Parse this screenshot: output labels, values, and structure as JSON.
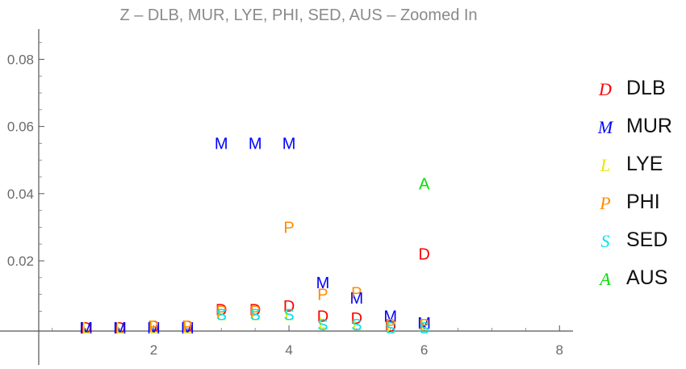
{
  "chart_data": {
    "type": "scatter",
    "title": "Z – DLB, MUR, LYE, PHI, SED, AUS – Zoomed In",
    "xlabel": "",
    "ylabel": "",
    "xlim": [
      0.3,
      8.2
    ],
    "ylim": [
      -0.011,
      0.089
    ],
    "x_ticks": [
      2,
      4,
      6,
      8
    ],
    "x_tick_labels": [
      "2",
      "4",
      "6",
      "8"
    ],
    "y_ticks": [
      0.02,
      0.04,
      0.06,
      0.08
    ],
    "y_tick_labels": [
      "0.02",
      "0.04",
      "0.06",
      "0.08"
    ],
    "grid": false,
    "legend_position": "right",
    "series": [
      {
        "name": "DLB",
        "marker": "D",
        "color": "#ff0000",
        "points": [
          [
            1,
            0
          ],
          [
            1.5,
            0
          ],
          [
            2,
            0.0005
          ],
          [
            2.5,
            0.0005
          ],
          [
            3,
            0.0055
          ],
          [
            3.5,
            0.0055
          ],
          [
            4,
            0.0065
          ],
          [
            4.5,
            0.0035
          ],
          [
            5,
            0.003
          ],
          [
            5.5,
            0.0005
          ],
          [
            6,
            0.022
          ]
        ]
      },
      {
        "name": "MUR",
        "marker": "M",
        "color": "#0000ff",
        "points": [
          [
            1,
            0
          ],
          [
            1.5,
            0
          ],
          [
            2,
            0
          ],
          [
            2.5,
            0
          ],
          [
            3,
            0.055
          ],
          [
            3.5,
            0.055
          ],
          [
            4,
            0.055
          ],
          [
            4.5,
            0.0135
          ],
          [
            5,
            0.009
          ],
          [
            5.5,
            0.0035
          ],
          [
            6,
            0.0015
          ]
        ]
      },
      {
        "name": "LYE",
        "marker": "L",
        "color": "#e8e800",
        "points": [
          [
            1,
            0
          ],
          [
            1.5,
            0
          ],
          [
            2,
            0
          ],
          [
            2.5,
            0
          ],
          [
            3,
            0.004
          ],
          [
            3.5,
            0.004
          ],
          [
            4,
            0.004
          ],
          [
            4.5,
            0.0015
          ],
          [
            5,
            0.001
          ],
          [
            5.5,
            0
          ],
          [
            6,
            0.001
          ]
        ]
      },
      {
        "name": "PHI",
        "marker": "P",
        "color": "#ff8c00",
        "points": [
          [
            2,
            0.0005
          ],
          [
            2.5,
            0.0005
          ],
          [
            3,
            0.005
          ],
          [
            3.5,
            0.005
          ],
          [
            4,
            0.03
          ],
          [
            4.5,
            0.01
          ],
          [
            5,
            0.0105
          ],
          [
            5.5,
            0.001
          ],
          [
            6,
            0.001
          ]
        ]
      },
      {
        "name": "SED",
        "marker": "S",
        "color": "#00e5ee",
        "points": [
          [
            3,
            0.004
          ],
          [
            3.5,
            0.004
          ],
          [
            4,
            0.004
          ],
          [
            4.5,
            0.001
          ],
          [
            5,
            0.001
          ],
          [
            5.5,
            0
          ],
          [
            6,
            0
          ]
        ]
      },
      {
        "name": "AUS",
        "marker": "A",
        "color": "#00e000",
        "points": [
          [
            6,
            0.043
          ]
        ]
      }
    ]
  }
}
